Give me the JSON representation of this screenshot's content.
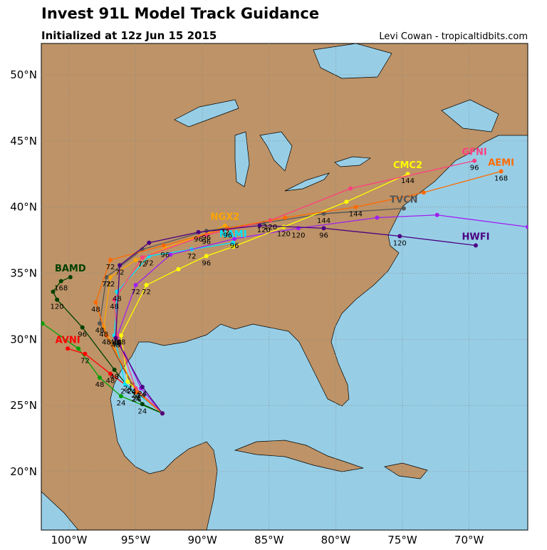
{
  "header": {
    "title": "Invest 91L Model Track Guidance",
    "subtitle": "Initialized at 12z Jun 15 2015",
    "credit": "Levi Cowan - tropicaltidbits.com"
  },
  "map": {
    "xlim": [
      -102.08,
      -65.6
    ],
    "ylim": [
      15.58,
      52.37
    ],
    "lat_ticks": [
      {
        "value": 20,
        "label": "20°N"
      },
      {
        "value": 25,
        "label": "25°N"
      },
      {
        "value": 30,
        "label": "30°N"
      },
      {
        "value": 35,
        "label": "35°N"
      },
      {
        "value": 40,
        "label": "40°N"
      },
      {
        "value": 45,
        "label": "45°N"
      },
      {
        "value": 50,
        "label": "50°N"
      }
    ],
    "lon_ticks": [
      {
        "value": -100,
        "label": "100°W"
      },
      {
        "value": -95,
        "label": "95°W"
      },
      {
        "value": -90,
        "label": "90°W"
      },
      {
        "value": -85,
        "label": "85°W"
      },
      {
        "value": -80,
        "label": "80°W"
      },
      {
        "value": -75,
        "label": "75°W"
      },
      {
        "value": -70,
        "label": "70°W"
      }
    ],
    "tracks": [
      {
        "color": "#00a000",
        "points": [
          [
            -93.0,
            24.4
          ],
          [
            -96.1,
            25.7
          ],
          [
            -97.7,
            27.1
          ],
          [
            -99.3,
            29.3
          ],
          [
            -102.0,
            31.2
          ]
        ],
        "labels": [
          null,
          "24",
          "48",
          null,
          null
        ]
      },
      {
        "name": "AVNI",
        "color": "#ff0000",
        "points": [
          [
            -93.0,
            24.4
          ],
          [
            -95.0,
            26.0
          ],
          [
            -96.9,
            27.4
          ],
          [
            -98.8,
            28.9
          ],
          [
            -100.1,
            29.3
          ]
        ],
        "labels": [
          null,
          "24",
          "48",
          "72",
          null
        ]
      },
      {
        "name": "BAMD",
        "color": "#004000",
        "points": [
          [
            -93.0,
            24.4
          ],
          [
            -94.5,
            25.1
          ],
          [
            -96.6,
            27.7
          ],
          [
            -99.0,
            30.9
          ],
          [
            -100.9,
            33.0
          ],
          [
            -101.2,
            33.6
          ],
          [
            -100.6,
            34.4
          ],
          [
            -99.9,
            34.7
          ]
        ],
        "labels": [
          null,
          "24",
          "48",
          "96",
          "120",
          null,
          "168",
          null
        ]
      },
      {
        "name": "NGX2",
        "color": "#ffa500",
        "points": [
          [
            -93.0,
            24.4
          ],
          [
            -95.3,
            26.6
          ],
          [
            -97.4,
            30.9
          ],
          [
            -96.9,
            34.7
          ],
          [
            -95.0,
            36.0
          ],
          [
            -92.8,
            36.9
          ],
          [
            -89.7,
            38.0
          ],
          [
            -88.3,
            38.6
          ]
        ],
        "labels": [
          null,
          "24",
          "48",
          "72",
          null,
          "96",
          null,
          "72"
        ]
      },
      {
        "name": "NAMI",
        "color": "#00e5ff",
        "points": [
          [
            -93.0,
            24.4
          ],
          [
            -95.8,
            26.6
          ],
          [
            -96.6,
            30.3
          ],
          [
            -96.4,
            33.6
          ],
          [
            -94.0,
            36.3
          ],
          [
            -90.8,
            36.8
          ],
          [
            -87.7,
            37.3
          ]
        ],
        "labels": [
          null,
          "24",
          "48",
          "48",
          "72",
          "72",
          null
        ]
      },
      {
        "name": "TVCN",
        "color": "#555555",
        "points": [
          [
            -93.0,
            24.4
          ],
          [
            -95.3,
            26.6
          ],
          [
            -97.7,
            31.2
          ],
          [
            -97.2,
            34.7
          ],
          [
            -94.5,
            36.8
          ],
          [
            -89.7,
            38.2
          ],
          [
            -85.4,
            38.8
          ],
          [
            -80.9,
            39.5
          ],
          [
            -74.9,
            39.9
          ]
        ],
        "labels": [
          null,
          "24",
          "48",
          "72",
          null,
          "96",
          "120",
          "144",
          null
        ]
      },
      {
        "color": "#a020f0",
        "points": [
          [
            -93.0,
            24.4
          ],
          [
            -94.6,
            26.3
          ],
          [
            -96.4,
            30.2
          ],
          [
            -95.0,
            34.1
          ],
          [
            -92.4,
            36.4
          ],
          [
            -87.6,
            37.6
          ],
          [
            -82.8,
            38.4
          ],
          [
            -76.9,
            39.2
          ],
          [
            -72.4,
            39.4
          ],
          [
            -65.6,
            38.5
          ]
        ],
        "labels": [
          null,
          "24",
          "48",
          "72",
          null,
          "96",
          "120",
          null,
          null,
          null
        ]
      },
      {
        "name": "CMC2",
        "color": "#ffff00",
        "points": [
          [
            -93.0,
            24.4
          ],
          [
            -95.6,
            26.8
          ],
          [
            -96.1,
            30.3
          ],
          [
            -94.2,
            34.1
          ],
          [
            -91.8,
            35.3
          ],
          [
            -89.7,
            36.3
          ],
          [
            -87.7,
            37.0
          ],
          [
            -83.9,
            38.5
          ],
          [
            -79.2,
            40.4
          ],
          [
            -74.6,
            42.5
          ]
        ],
        "labels": [
          null,
          "24",
          "48",
          "72",
          null,
          "96",
          null,
          "120",
          null,
          "144"
        ]
      },
      {
        "name": "GFNI",
        "color": "#ff3f7f",
        "points": [
          [
            -93.0,
            24.4
          ],
          [
            -95.0,
            26.3
          ],
          [
            -96.4,
            30.3
          ],
          [
            -96.6,
            33.0
          ],
          [
            -94.5,
            36.2
          ],
          [
            -89.7,
            37.9
          ],
          [
            -84.9,
            39.0
          ],
          [
            -78.9,
            41.4
          ],
          [
            -69.6,
            43.5
          ]
        ],
        "labels": [
          null,
          "24",
          "48",
          "48",
          "72",
          "96",
          "120",
          null,
          "96"
        ]
      },
      {
        "name": "AEMI",
        "color": "#ff6a00",
        "points": [
          [
            -93.0,
            24.4
          ],
          [
            -94.9,
            26.0
          ],
          [
            -97.2,
            30.3
          ],
          [
            -98.0,
            32.8
          ],
          [
            -96.9,
            36.0
          ],
          [
            -92.9,
            37.1
          ],
          [
            -88.1,
            38.4
          ],
          [
            -83.8,
            39.2
          ],
          [
            -78.5,
            40.0
          ],
          [
            -73.4,
            41.1
          ],
          [
            -67.6,
            42.7
          ]
        ],
        "labels": [
          null,
          "24",
          "48",
          "48",
          "72",
          null,
          "96",
          null,
          "144",
          null,
          "168"
        ]
      },
      {
        "name": "HWFI",
        "color": "#4b0082",
        "points": [
          [
            -93.0,
            24.4
          ],
          [
            -94.5,
            26.4
          ],
          [
            -96.5,
            30.1
          ],
          [
            -96.2,
            35.6
          ],
          [
            -94.0,
            37.3
          ],
          [
            -90.3,
            38.1
          ],
          [
            -85.7,
            38.6
          ],
          [
            -80.9,
            38.4
          ],
          [
            -75.2,
            37.8
          ],
          [
            -69.5,
            37.1
          ]
        ],
        "labels": [
          null,
          "24",
          "48",
          "72",
          null,
          "96",
          null,
          "96",
          "120",
          null
        ]
      }
    ]
  }
}
